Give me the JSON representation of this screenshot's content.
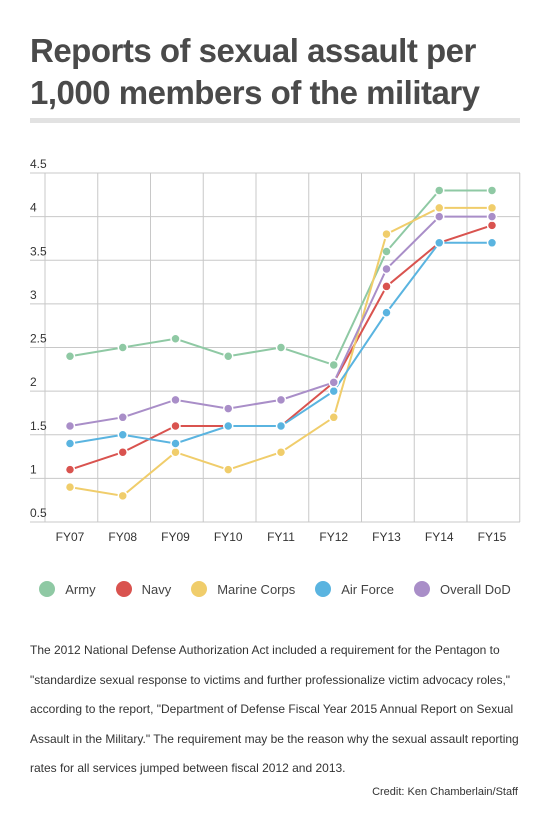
{
  "title": "Reports of sexual assault per 1,000 members of the military",
  "caption": "The 2012 National Defense Authorization Act included a requirement for the Pentagon to \"standardize sexual response to victims and further professionalize victim advocacy roles,\" according to the report, \"Department of Defense Fiscal Year 2015 Annual Report on Sexual Assault in the Military.\" The requirement may be the reason why the sexual assault reporting rates for all services jumped between fiscal 2012 and 2013.",
  "credit": "Credit: Ken Chamberlain/Staff",
  "chart_data": {
    "type": "line",
    "title": "Reports of sexual assault per 1,000 members of the military",
    "xlabel": "",
    "ylabel": "",
    "categories": [
      "FY07",
      "FY08",
      "FY09",
      "FY10",
      "FY11",
      "FY12",
      "FY13",
      "FY14",
      "FY15"
    ],
    "ylim": [
      0.5,
      4.5
    ],
    "yticks": [
      "0.5",
      "1",
      "1.5",
      "2",
      "2.5",
      "3",
      "3.5",
      "4",
      "4.5"
    ],
    "grid": true,
    "legend_position": "bottom",
    "series": [
      {
        "name": "Army",
        "color": "#8fc9a4",
        "values": [
          2.4,
          2.5,
          2.6,
          2.4,
          2.5,
          2.3,
          3.6,
          4.3,
          4.3
        ]
      },
      {
        "name": "Navy",
        "color": "#d9534f",
        "values": [
          1.1,
          1.3,
          1.6,
          1.6,
          1.6,
          2.1,
          3.2,
          3.7,
          3.9
        ]
      },
      {
        "name": "Marine Corps",
        "color": "#f0cd6b",
        "values": [
          0.9,
          0.8,
          1.3,
          1.1,
          1.3,
          1.7,
          3.8,
          4.1,
          4.1
        ]
      },
      {
        "name": "Air Force",
        "color": "#5ab4e0",
        "values": [
          1.4,
          1.5,
          1.4,
          1.6,
          1.6,
          2.0,
          2.9,
          3.7,
          3.7
        ]
      },
      {
        "name": "Overall DoD",
        "color": "#a98ec8",
        "values": [
          1.6,
          1.7,
          1.9,
          1.8,
          1.9,
          2.1,
          3.4,
          4.0,
          4.0
        ]
      }
    ]
  }
}
